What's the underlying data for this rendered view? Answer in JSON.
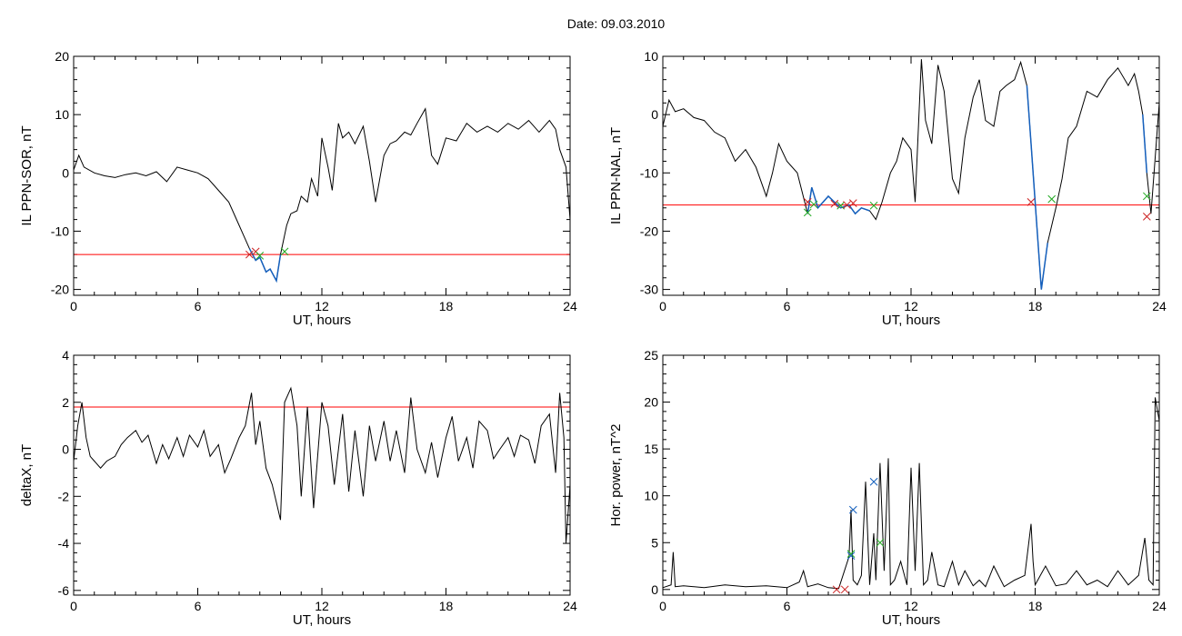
{
  "header": {
    "title": "Date:  09.03.2010"
  },
  "colors": {
    "line": "#000000",
    "threshold": "#ff0000",
    "highlight": "#1560bd",
    "marker_red": "#cc2222",
    "marker_green": "#22aa22",
    "marker_blue": "#1560bd"
  },
  "chart_data": [
    {
      "type": "line",
      "xlabel": "UT, hours",
      "ylabel": "IL PPN-SOR, nT",
      "xlim": [
        0,
        24
      ],
      "ylim": [
        -21,
        20
      ],
      "xticks": [
        0,
        6,
        12,
        18,
        24
      ],
      "yticks": [
        -20,
        -10,
        0,
        10,
        20
      ],
      "threshold": -14,
      "x": [
        0.0,
        0.25,
        0.5,
        1.0,
        1.5,
        2.0,
        2.5,
        3.0,
        3.5,
        4.0,
        4.5,
        5.0,
        5.5,
        6.0,
        6.5,
        7.0,
        7.5,
        8.0,
        8.5,
        8.8,
        9.0,
        9.3,
        9.5,
        9.8,
        10.0,
        10.3,
        10.5,
        10.8,
        11.0,
        11.3,
        11.5,
        11.8,
        12.0,
        12.3,
        12.5,
        12.8,
        13.0,
        13.3,
        13.6,
        14.0,
        14.3,
        14.6,
        15.0,
        15.3,
        15.6,
        16.0,
        16.3,
        16.6,
        17.0,
        17.3,
        17.6,
        18.0,
        18.5,
        19.0,
        19.5,
        20.0,
        20.5,
        21.0,
        21.5,
        22.0,
        22.5,
        23.0,
        23.3,
        23.5,
        23.8,
        24.0
      ],
      "y": [
        0.5,
        3.0,
        1.0,
        0.0,
        -0.5,
        -0.8,
        -0.3,
        0.0,
        -0.5,
        0.2,
        -1.5,
        1.0,
        0.5,
        0.0,
        -1.0,
        -3.0,
        -5.0,
        -9.0,
        -13.0,
        -15.0,
        -14.5,
        -17.0,
        -16.5,
        -18.5,
        -14.0,
        -9.0,
        -7.0,
        -6.5,
        -4.0,
        -5.0,
        -1.0,
        -4.0,
        6.0,
        1.0,
        -3.0,
        8.5,
        6.0,
        7.0,
        5.0,
        8.0,
        2.0,
        -5.0,
        3.0,
        5.0,
        5.5,
        7.0,
        6.5,
        8.5,
        11.0,
        3.0,
        1.5,
        6.0,
        5.5,
        8.5,
        7.0,
        8.0,
        7.0,
        8.5,
        7.5,
        9.0,
        7.0,
        9.0,
        7.5,
        4.0,
        1.0,
        -8.0
      ],
      "highlight_range": [
        8.5,
        10.2
      ],
      "markers": [
        {
          "x": 8.5,
          "y": -14.0,
          "color": "red"
        },
        {
          "x": 8.8,
          "y": -13.5,
          "color": "red"
        },
        {
          "x": 9.0,
          "y": -14.2,
          "color": "green"
        },
        {
          "x": 10.2,
          "y": -13.5,
          "color": "green"
        }
      ]
    },
    {
      "type": "line",
      "xlabel": "UT, hours",
      "ylabel": "IL PPN-NAL, nT",
      "xlim": [
        0,
        24
      ],
      "ylim": [
        -31,
        10
      ],
      "xticks": [
        0,
        6,
        12,
        18,
        24
      ],
      "yticks": [
        -30,
        -20,
        -10,
        0,
        10
      ],
      "threshold": -15.5,
      "x": [
        0.0,
        0.3,
        0.6,
        1.0,
        1.5,
        2.0,
        2.5,
        3.0,
        3.5,
        4.0,
        4.5,
        5.0,
        5.3,
        5.6,
        6.0,
        6.5,
        7.0,
        7.2,
        7.5,
        8.0,
        8.3,
        8.6,
        9.0,
        9.3,
        9.6,
        10.0,
        10.3,
        10.6,
        11.0,
        11.3,
        11.6,
        12.0,
        12.2,
        12.5,
        12.7,
        13.0,
        13.3,
        13.6,
        14.0,
        14.3,
        14.6,
        15.0,
        15.3,
        15.6,
        16.0,
        16.3,
        16.6,
        17.0,
        17.3,
        17.6,
        17.8,
        18.0,
        18.3,
        18.6,
        19.0,
        19.3,
        19.6,
        20.0,
        20.5,
        21.0,
        21.5,
        22.0,
        22.5,
        22.8,
        23.0,
        23.2,
        23.4,
        23.6,
        24.0
      ],
      "y": [
        -2.0,
        2.5,
        0.5,
        1.0,
        -0.5,
        -1.0,
        -3.0,
        -4.0,
        -8.0,
        -6.0,
        -9.0,
        -14.0,
        -10.0,
        -5.0,
        -8.0,
        -10.0,
        -17.0,
        -12.5,
        -16.0,
        -14.0,
        -15.0,
        -16.0,
        -15.5,
        -17.0,
        -16.0,
        -16.5,
        -18.0,
        -15.0,
        -10.0,
        -8.0,
        -4.0,
        -6.0,
        -15.0,
        9.5,
        -1.0,
        -5.0,
        8.5,
        4.0,
        -11.0,
        -13.5,
        -4.0,
        3.0,
        6.0,
        -1.0,
        -2.0,
        4.0,
        5.0,
        6.0,
        9.0,
        5.0,
        -5.0,
        -15.0,
        -30.0,
        -22.0,
        -16.0,
        -11.0,
        -4.0,
        -2.0,
        4.0,
        3.0,
        6.0,
        8.0,
        5.0,
        7.0,
        4.0,
        0.0,
        -10.0,
        -17.0,
        2.0
      ],
      "highlight_ranges": [
        [
          6.9,
          10.2
        ],
        [
          17.6,
          18.8
        ],
        [
          23.2,
          23.5
        ]
      ],
      "markers": [
        {
          "x": 7.0,
          "y": -15.0,
          "color": "red"
        },
        {
          "x": 7.0,
          "y": -16.8,
          "color": "green"
        },
        {
          "x": 7.3,
          "y": -15.4,
          "color": "green"
        },
        {
          "x": 8.3,
          "y": -15.3,
          "color": "red"
        },
        {
          "x": 8.6,
          "y": -15.6,
          "color": "green"
        },
        {
          "x": 8.9,
          "y": -15.5,
          "color": "red"
        },
        {
          "x": 9.2,
          "y": -15.2,
          "color": "red"
        },
        {
          "x": 10.2,
          "y": -15.6,
          "color": "green"
        },
        {
          "x": 17.8,
          "y": -15.0,
          "color": "red"
        },
        {
          "x": 18.8,
          "y": -14.5,
          "color": "green"
        },
        {
          "x": 23.4,
          "y": -14.0,
          "color": "green"
        },
        {
          "x": 23.4,
          "y": -17.5,
          "color": "red"
        }
      ]
    },
    {
      "type": "line",
      "xlabel": "UT, hours",
      "ylabel": "deltaX, nT",
      "xlim": [
        0,
        24
      ],
      "ylim": [
        -6.2,
        4
      ],
      "xticks": [
        0,
        6,
        12,
        18,
        24
      ],
      "yticks": [
        -6,
        -4,
        -2,
        0,
        2,
        4
      ],
      "threshold": 1.8,
      "x": [
        0.0,
        0.2,
        0.4,
        0.6,
        0.8,
        1.0,
        1.3,
        1.6,
        2.0,
        2.3,
        2.6,
        3.0,
        3.3,
        3.6,
        4.0,
        4.3,
        4.6,
        5.0,
        5.3,
        5.6,
        6.0,
        6.3,
        6.6,
        7.0,
        7.3,
        7.6,
        8.0,
        8.3,
        8.6,
        8.8,
        9.0,
        9.3,
        9.6,
        10.0,
        10.2,
        10.5,
        10.8,
        11.0,
        11.3,
        11.6,
        12.0,
        12.3,
        12.6,
        13.0,
        13.3,
        13.6,
        14.0,
        14.3,
        14.6,
        15.0,
        15.3,
        15.6,
        16.0,
        16.3,
        16.6,
        17.0,
        17.3,
        17.6,
        18.0,
        18.3,
        18.6,
        19.0,
        19.3,
        19.6,
        20.0,
        20.3,
        20.6,
        21.0,
        21.3,
        21.6,
        22.0,
        22.3,
        22.6,
        23.0,
        23.3,
        23.5,
        23.7,
        23.8,
        24.0
      ],
      "y": [
        -0.5,
        1.0,
        2.0,
        0.5,
        -0.3,
        -0.5,
        -0.8,
        -0.5,
        -0.3,
        0.2,
        0.5,
        0.8,
        0.3,
        0.6,
        -0.6,
        0.2,
        -0.4,
        0.5,
        -0.3,
        0.6,
        0.1,
        0.8,
        -0.3,
        0.2,
        -1.0,
        -0.4,
        0.5,
        1.0,
        2.4,
        0.2,
        1.2,
        -0.8,
        -1.5,
        -3.0,
        2.0,
        2.6,
        1.0,
        -2.0,
        1.8,
        -2.5,
        2.0,
        1.0,
        -1.5,
        1.5,
        -1.8,
        0.8,
        -2.0,
        1.0,
        -0.5,
        1.2,
        -0.5,
        0.8,
        -1.0,
        2.2,
        0.0,
        -1.0,
        0.3,
        -1.2,
        0.5,
        1.4,
        -0.5,
        0.5,
        -0.8,
        1.2,
        0.8,
        -0.4,
        0.0,
        0.5,
        -0.3,
        0.6,
        0.4,
        -0.6,
        1.0,
        1.5,
        -1.0,
        2.4,
        0.5,
        -4.0,
        -1.5
      ]
    },
    {
      "type": "line",
      "xlabel": "UT, hours",
      "ylabel": "Hor. power, nT^2",
      "xlim": [
        0,
        24
      ],
      "ylim": [
        -0.6,
        25
      ],
      "xticks": [
        0,
        6,
        12,
        18,
        24
      ],
      "yticks": [
        0,
        5,
        10,
        15,
        20,
        25
      ],
      "threshold": 25,
      "x": [
        0.0,
        0.4,
        0.5,
        0.6,
        1.0,
        2.0,
        3.0,
        4.0,
        5.0,
        6.0,
        6.6,
        6.8,
        7.0,
        7.5,
        8.0,
        8.5,
        9.0,
        9.1,
        9.2,
        9.4,
        9.6,
        9.8,
        10.0,
        10.2,
        10.3,
        10.5,
        10.7,
        10.9,
        11.0,
        11.2,
        11.5,
        11.8,
        12.0,
        12.2,
        12.4,
        12.6,
        12.8,
        13.0,
        13.3,
        13.6,
        14.0,
        14.3,
        14.6,
        15.0,
        15.3,
        15.6,
        16.0,
        16.5,
        17.0,
        17.5,
        17.8,
        17.9,
        18.0,
        18.5,
        19.0,
        19.5,
        20.0,
        20.5,
        21.0,
        21.5,
        22.0,
        22.5,
        23.0,
        23.3,
        23.5,
        23.7,
        23.8,
        24.0
      ],
      "y": [
        0.2,
        0.5,
        4.0,
        0.3,
        0.4,
        0.2,
        0.5,
        0.3,
        0.4,
        0.2,
        0.8,
        2.0,
        0.3,
        0.6,
        0.2,
        0.1,
        3.5,
        8.5,
        1.0,
        0.5,
        1.5,
        11.5,
        0.5,
        6.0,
        1.0,
        13.5,
        2.0,
        14.0,
        0.5,
        1.0,
        3.0,
        0.5,
        13.0,
        2.0,
        13.5,
        0.5,
        1.0,
        4.0,
        0.5,
        0.3,
        3.0,
        0.5,
        2.0,
        0.4,
        1.0,
        0.3,
        2.5,
        0.3,
        1.0,
        1.5,
        7.0,
        3.0,
        0.5,
        2.5,
        0.4,
        0.6,
        2.0,
        0.5,
        1.0,
        0.3,
        2.0,
        0.5,
        1.5,
        5.5,
        1.0,
        0.5,
        20.5,
        18.0
      ],
      "markers": [
        {
          "x": 8.4,
          "y": 0.0,
          "color": "red"
        },
        {
          "x": 8.8,
          "y": 0.0,
          "color": "red"
        },
        {
          "x": 9.1,
          "y": 3.8,
          "color": "green"
        },
        {
          "x": 9.1,
          "y": 3.6,
          "color": "blue"
        },
        {
          "x": 9.2,
          "y": 8.5,
          "color": "blue"
        },
        {
          "x": 10.2,
          "y": 11.5,
          "color": "blue"
        },
        {
          "x": 10.5,
          "y": 5.0,
          "color": "green"
        }
      ]
    }
  ]
}
